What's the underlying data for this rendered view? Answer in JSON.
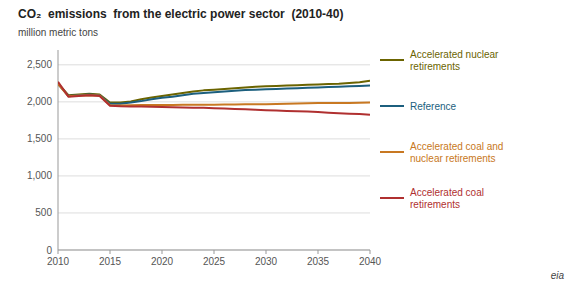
{
  "chart_data": {
    "type": "line",
    "title": "CO₂  emissions  from the electric power sector  (2010-40)",
    "ylabel": "million metric tons",
    "x": [
      2010,
      2011,
      2012,
      2013,
      2014,
      2015,
      2016,
      2017,
      2018,
      2019,
      2020,
      2021,
      2022,
      2023,
      2024,
      2025,
      2026,
      2027,
      2028,
      2029,
      2030,
      2031,
      2032,
      2033,
      2034,
      2035,
      2036,
      2037,
      2038,
      2039,
      2040
    ],
    "series": [
      {
        "name": "Accelerated nuclear\nretirements",
        "color": "#6b6400",
        "values": [
          2250,
          2090,
          2100,
          2110,
          2100,
          1990,
          1990,
          2005,
          2035,
          2060,
          2080,
          2100,
          2120,
          2140,
          2155,
          2165,
          2175,
          2185,
          2195,
          2205,
          2210,
          2215,
          2220,
          2225,
          2230,
          2235,
          2240,
          2245,
          2255,
          2265,
          2285
        ]
      },
      {
        "name": "Reference",
        "color": "#1c5f7e",
        "values": [
          2240,
          2080,
          2090,
          2100,
          2090,
          1975,
          1975,
          1990,
          2010,
          2035,
          2055,
          2070,
          2090,
          2110,
          2120,
          2130,
          2140,
          2150,
          2160,
          2165,
          2170,
          2175,
          2180,
          2185,
          2190,
          2195,
          2200,
          2205,
          2210,
          2215,
          2220
        ]
      },
      {
        "name": "Accelerated coal and\nnuclear retirements",
        "color": "#c87822",
        "values": [
          2240,
          2075,
          2085,
          2090,
          2085,
          1955,
          1950,
          1955,
          1958,
          1958,
          1958,
          1958,
          1960,
          1960,
          1960,
          1960,
          1963,
          1965,
          1967,
          1968,
          1968,
          1970,
          1975,
          1978,
          1982,
          1985,
          1985,
          1985,
          1985,
          1988,
          1990
        ]
      },
      {
        "name": "Accelerated coal\nretirements",
        "color": "#b03030",
        "values": [
          2270,
          2070,
          2080,
          2090,
          2080,
          1948,
          1940,
          1938,
          1938,
          1935,
          1932,
          1928,
          1925,
          1922,
          1920,
          1915,
          1910,
          1905,
          1900,
          1895,
          1888,
          1882,
          1878,
          1874,
          1870,
          1862,
          1852,
          1845,
          1840,
          1835,
          1825
        ]
      }
    ],
    "xlim": [
      2010,
      2040
    ],
    "ylim": [
      0,
      2700
    ],
    "xticks": [
      2010,
      2015,
      2020,
      2025,
      2030,
      2035,
      2040
    ],
    "yticks": [
      0,
      500,
      {
        "value": 1000,
        "label": "1,000"
      },
      {
        "value": 1500,
        "label": "1,500"
      },
      {
        "value": 2000,
        "label": "2,000"
      },
      {
        "value": 2500,
        "label": "2,500"
      }
    ],
    "grid": true,
    "legend": "right",
    "annotations": [
      "eia"
    ]
  }
}
